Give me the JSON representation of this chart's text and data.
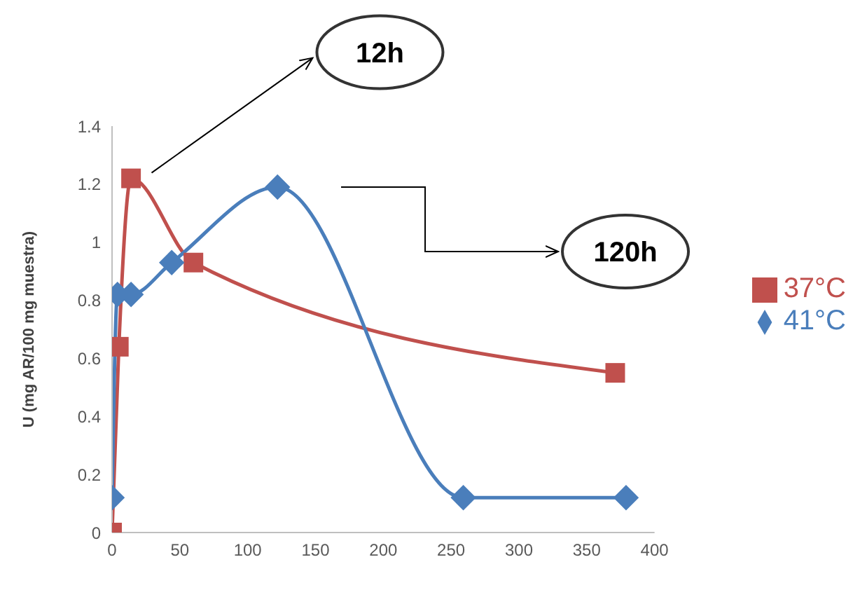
{
  "chart_data": {
    "type": "line",
    "ylabel": "U (mg AR/100 mg muestra)",
    "xlim": [
      0,
      400
    ],
    "xticks": [
      0,
      50,
      100,
      150,
      200,
      250,
      300,
      350,
      400
    ],
    "ylim": [
      0,
      1.4
    ],
    "yticks": [
      0,
      0.2,
      0.4,
      0.6,
      0.8,
      1,
      1.2,
      1.4
    ],
    "grid": false,
    "legend": "right",
    "series": [
      {
        "name": "37°C",
        "color": "#c0504d",
        "marker": "square",
        "x": [
          0,
          5,
          14,
          60,
          371
        ],
        "values": [
          0,
          0.64,
          1.22,
          0.93,
          0.55
        ]
      },
      {
        "name": "41°C",
        "color": "#4a7ebb",
        "marker": "diamond",
        "x": [
          0,
          4,
          14,
          44,
          122,
          259,
          379
        ],
        "values": [
          0.12,
          0.82,
          0.82,
          0.93,
          1.19,
          0.12,
          0.12
        ]
      }
    ],
    "annotations": [
      "12h",
      "120h"
    ]
  }
}
